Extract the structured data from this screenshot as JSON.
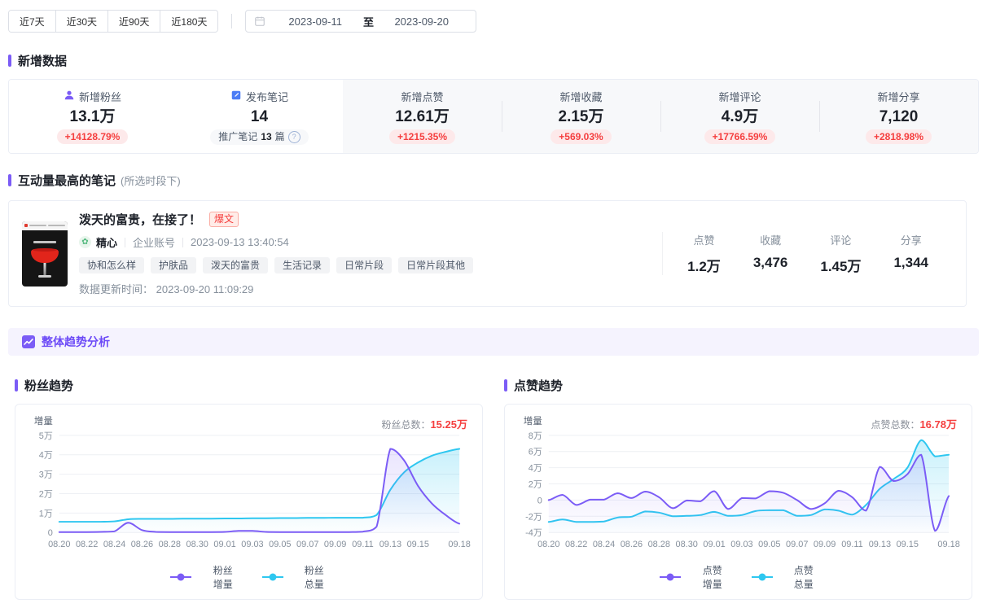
{
  "toolbar": {
    "range_buttons": [
      "近7天",
      "近30天",
      "近90天",
      "近180天"
    ],
    "date_start": "2023-09-11",
    "date_separator": "至",
    "date_end": "2023-09-20"
  },
  "new_data": {
    "title": "新增数据",
    "stats": [
      {
        "icon": "user-icon",
        "label": "新增粉丝",
        "value": "13.1万",
        "delta": "+14128.79%"
      },
      {
        "icon": "note-icon",
        "label": "发布笔记",
        "value": "14",
        "sub_prefix": "推广笔记",
        "sub_count": "13",
        "sub_suffix": "篇"
      },
      {
        "label": "新增点赞",
        "value": "12.61万",
        "delta": "+1215.35%"
      },
      {
        "label": "新增收藏",
        "value": "2.15万",
        "delta": "+569.03%"
      },
      {
        "label": "新增评论",
        "value": "4.9万",
        "delta": "+17766.59%"
      },
      {
        "label": "新增分享",
        "value": "7,120",
        "delta": "+2818.98%"
      }
    ]
  },
  "top_note": {
    "title": "互动量最高的笔记",
    "title_note": "(所选时段下)",
    "note": {
      "title": "泼天的富贵，在接了！",
      "badge": "爆文",
      "author": "精心",
      "account_type": "企业账号",
      "publish_time": "2023-09-13 13:40:54",
      "tags": [
        "协和怎么样",
        "护肤品",
        "泼天的富贵",
        "生活记录",
        "日常片段",
        "日常片段其他"
      ],
      "update_label": "数据更新时间：",
      "update_time": "2023-09-20 11:09:29",
      "stats": [
        {
          "label": "点赞",
          "value": "1.2万"
        },
        {
          "label": "收藏",
          "value": "3,476"
        },
        {
          "label": "评论",
          "value": "1.45万"
        },
        {
          "label": "分享",
          "value": "1,344"
        }
      ]
    }
  },
  "trend_banner": {
    "label": "整体趋势分析"
  },
  "colors": {
    "accent_purple": "#7b5cf6",
    "banner_purple": "#6c4af7",
    "cyan": "#2ec7f0",
    "red": "#f53f3f",
    "gray_text": "#86909c"
  },
  "chart_data": [
    {
      "type": "line",
      "title": "粉丝趋势",
      "total_label": "粉丝总数：",
      "total_value": "15.25万",
      "ylabel": "增量",
      "unit": "万",
      "grid": true,
      "legend_position": "bottom",
      "x": [
        "08.20",
        "08.21",
        "08.22",
        "08.23",
        "08.24",
        "08.25",
        "08.26",
        "08.27",
        "08.28",
        "08.29",
        "08.30",
        "08.31",
        "09.01",
        "09.02",
        "09.03",
        "09.04",
        "09.05",
        "09.06",
        "09.07",
        "09.08",
        "09.09",
        "09.10",
        "09.11",
        "09.12",
        "09.13",
        "09.14",
        "09.15",
        "09.16",
        "09.17",
        "09.18"
      ],
      "x_tick_labels": [
        "08.20",
        "08.22",
        "08.24",
        "08.26",
        "08.28",
        "08.30",
        "09.01",
        "09.03",
        "09.05",
        "09.07",
        "09.09",
        "09.11",
        "09.13",
        "09.15",
        "09.18"
      ],
      "x_tick_indices": [
        0,
        2,
        4,
        6,
        8,
        10,
        12,
        14,
        16,
        18,
        20,
        22,
        24,
        26,
        29
      ],
      "ylim": [
        0,
        5
      ],
      "yticks": [
        0,
        1,
        2,
        3,
        4,
        5
      ],
      "ytick_labels": [
        "0",
        "1万",
        "2万",
        "3万",
        "4万",
        "5万"
      ],
      "series": [
        {
          "name": "粉丝增量",
          "color": "#7b5cf6",
          "values": [
            0.02,
            0.02,
            0.02,
            0.03,
            0.06,
            0.5,
            0.12,
            0.03,
            0.02,
            0.02,
            0.02,
            0.02,
            0.03,
            0.08,
            0.08,
            0.03,
            0.02,
            0.02,
            0.02,
            0.02,
            0.02,
            0.02,
            0.04,
            0.3,
            4.3,
            3.7,
            2.4,
            1.5,
            0.9,
            0.45
          ]
        },
        {
          "name": "粉丝总量",
          "color": "#2ec7f0",
          "values": [
            0.55,
            0.55,
            0.55,
            0.55,
            0.57,
            0.68,
            0.7,
            0.7,
            0.7,
            0.71,
            0.71,
            0.71,
            0.72,
            0.72,
            0.73,
            0.73,
            0.74,
            0.74,
            0.75,
            0.75,
            0.76,
            0.76,
            0.76,
            0.9,
            2.2,
            3.1,
            3.6,
            3.95,
            4.15,
            4.3
          ]
        }
      ]
    },
    {
      "type": "line",
      "title": "点赞趋势",
      "total_label": "点赞总数：",
      "total_value": "16.78万",
      "ylabel": "增量",
      "unit": "万",
      "grid": true,
      "legend_position": "bottom",
      "x": [
        "08.20",
        "08.21",
        "08.22",
        "08.23",
        "08.24",
        "08.25",
        "08.26",
        "08.27",
        "08.28",
        "08.29",
        "08.30",
        "08.31",
        "09.01",
        "09.02",
        "09.03",
        "09.04",
        "09.05",
        "09.06",
        "09.07",
        "09.08",
        "09.09",
        "09.10",
        "09.11",
        "09.12",
        "09.13",
        "09.14",
        "09.15",
        "09.16",
        "09.17",
        "09.18"
      ],
      "x_tick_labels": [
        "08.20",
        "08.22",
        "08.24",
        "08.26",
        "08.28",
        "08.30",
        "09.01",
        "09.03",
        "09.05",
        "09.07",
        "09.09",
        "09.11",
        "09.13",
        "09.15",
        "09.18"
      ],
      "x_tick_indices": [
        0,
        2,
        4,
        6,
        8,
        10,
        12,
        14,
        16,
        18,
        20,
        22,
        24,
        26,
        29
      ],
      "ylim": [
        -4,
        8
      ],
      "yticks": [
        -4,
        -2,
        0,
        2,
        4,
        6,
        8
      ],
      "ytick_labels": [
        "-4万",
        "-2万",
        "0",
        "2万",
        "4万",
        "6万",
        "8万"
      ],
      "series": [
        {
          "name": "点赞增量",
          "color": "#7b5cf6",
          "values": [
            0.0,
            0.65,
            -0.6,
            0.05,
            0.05,
            0.85,
            0.25,
            1.05,
            0.35,
            -1.0,
            -0.05,
            -0.15,
            1.1,
            -1.1,
            0.25,
            0.2,
            1.1,
            0.9,
            0.0,
            -1.1,
            -0.4,
            1.15,
            0.35,
            -1.3,
            4.1,
            2.35,
            3.2,
            5.6,
            -3.8,
            0.5
          ]
        },
        {
          "name": "点赞总量",
          "color": "#2ec7f0",
          "values": [
            -2.7,
            -2.4,
            -2.7,
            -2.7,
            -2.65,
            -2.15,
            -2.05,
            -1.4,
            -1.55,
            -2.0,
            -1.95,
            -1.85,
            -1.45,
            -1.95,
            -1.85,
            -1.35,
            -1.25,
            -1.25,
            -1.95,
            -1.85,
            -1.15,
            -1.3,
            -1.8,
            -0.6,
            1.4,
            2.6,
            4.0,
            7.4,
            5.4,
            5.6
          ]
        }
      ]
    }
  ]
}
